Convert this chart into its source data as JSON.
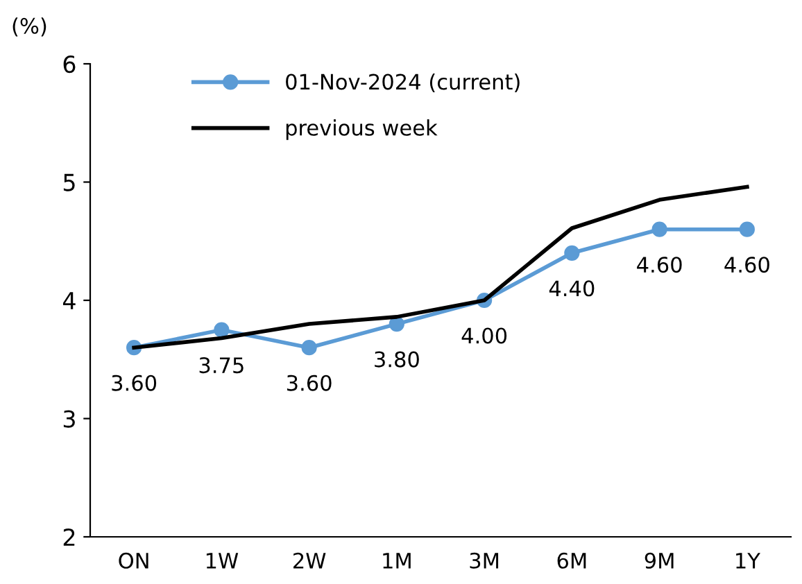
{
  "chart_data": {
    "type": "line",
    "ylabel": "(%)",
    "categories": [
      "ON",
      "1W",
      "2W",
      "1M",
      "3M",
      "6M",
      "9M",
      "1Y"
    ],
    "series": [
      {
        "name": "01-Nov-2024 (current)",
        "color": "#5b9bd5",
        "marker": "circle",
        "values": [
          3.6,
          3.75,
          3.6,
          3.8,
          4.0,
          4.4,
          4.6,
          4.6
        ],
        "value_labels": [
          "3.60",
          "3.75",
          "3.60",
          "3.80",
          "4.00",
          "4.40",
          "4.60",
          "4.60"
        ]
      },
      {
        "name": "previous week",
        "color": "#000000",
        "marker": "none",
        "values": [
          3.6,
          3.68,
          3.8,
          3.86,
          4.0,
          4.61,
          4.85,
          4.96
        ]
      }
    ],
    "ylim": [
      2,
      6
    ],
    "yticks": [
      2,
      3,
      4,
      5,
      6
    ],
    "grid": false,
    "legend": "top left"
  }
}
